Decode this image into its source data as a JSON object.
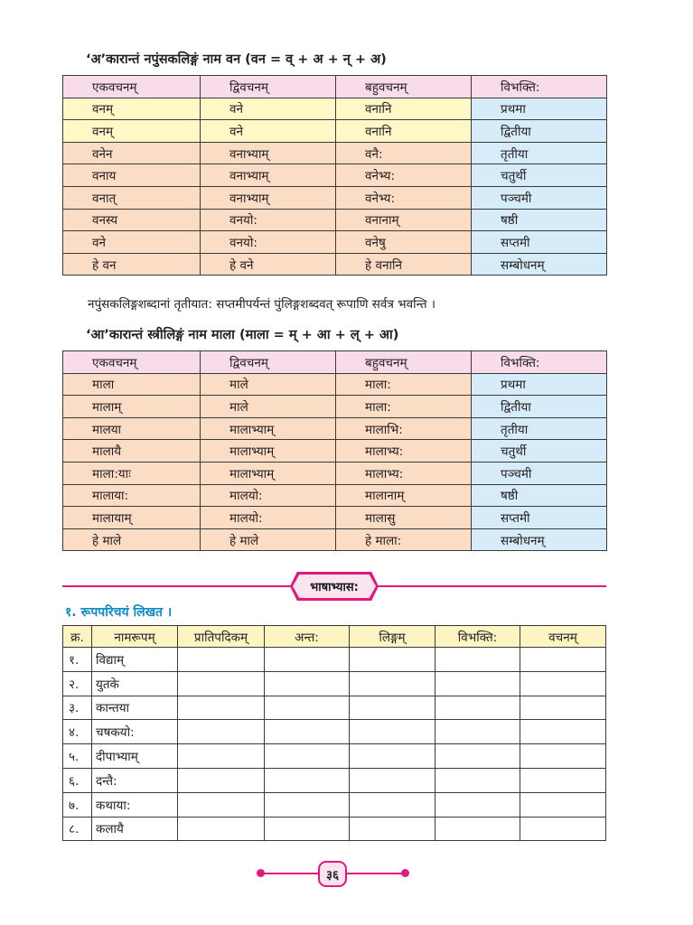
{
  "section1": {
    "heading": "‘अ’कारान्तं नपुंसकलिङ्गं नाम वन (वन = व् + अ + न् + अ)",
    "headers": [
      "एकवचनम्",
      "द्विवचनम्",
      "बहुवचनम्",
      "विभक्ति:"
    ],
    "rows": [
      [
        "वनम्",
        "वने",
        "वनानि",
        "प्रथमा"
      ],
      [
        "वनम्",
        "वने",
        "वनानि",
        "द्वितीया"
      ],
      [
        "वनेन",
        "वनाभ्याम्",
        "वनै:",
        "तृतीया"
      ],
      [
        "वनाय",
        "वनाभ्याम्",
        "वनेभ्य:",
        "चतुर्थी"
      ],
      [
        "वनात्",
        "वनाभ्याम्",
        "वनेभ्य:",
        "पञ्चमी"
      ],
      [
        "वनस्य",
        "वनयो:",
        "वनानाम्",
        "षष्ठी"
      ],
      [
        "वने",
        "वनयो:",
        "वनेषु",
        "सप्तमी"
      ],
      [
        "हे वन",
        "हे वने",
        "हे वनानि",
        "सम्बोधनम्"
      ]
    ]
  },
  "note": "नपुंसकलिङ्गशब्दानां तृतीयात: सप्तमीपर्यन्तं पुंलिङ्गशब्दवत् रूपाणि सर्वत्र भवन्ति ।",
  "section2": {
    "heading": "‘आ’कारान्तं स्त्रीलिङ्गं नाम माला (माला = म् + आ + ल् + आ)",
    "headers": [
      "एकवचनम्",
      "द्विवचनम्",
      "बहुवचनम्",
      "विभक्ति:"
    ],
    "rows": [
      [
        "माला",
        "माले",
        "माला:",
        "प्रथमा"
      ],
      [
        "मालाम्",
        "माले",
        "माला:",
        "द्वितीया"
      ],
      [
        "मालया",
        "मालाभ्याम्",
        "मालाभि:",
        "तृतीया"
      ],
      [
        "मालायै",
        "मालाभ्याम्",
        "मालाभ्य:",
        "चतुर्थी"
      ],
      [
        "माला:याः",
        "मालाभ्याम्",
        "मालाभ्य:",
        "पञ्चमी"
      ],
      [
        "मालाया:",
        "मालयो:",
        "मालानाम्",
        "षष्ठी"
      ],
      [
        "मालायाम्",
        "मालयो:",
        "मालासु",
        "सप्तमी"
      ],
      [
        "हे माले",
        "हे माले",
        "हे माला:",
        "सम्बोधनम्"
      ]
    ]
  },
  "badge": "भाषाभ्यास:",
  "exercise": {
    "title": "१. रूपपरिचयं लिखत ।",
    "headers": [
      "क्र.",
      "नामरूपम्",
      "प्रातिपदिकम्",
      "अन्त:",
      "लिङ्गम्",
      "विभक्ति:",
      "वचनम्"
    ],
    "rows": [
      [
        "१.",
        "विद्याम्"
      ],
      [
        "२.",
        "युतके"
      ],
      [
        "३.",
        "कान्तया"
      ],
      [
        "४.",
        "चषकयो:"
      ],
      [
        "५.",
        "दीपाभ्याम्"
      ],
      [
        "६.",
        "दन्तै:"
      ],
      [
        "७.",
        "कथाया:"
      ],
      [
        "८.",
        "कलायै"
      ]
    ]
  },
  "page_number": "३६",
  "colors": {
    "accent": "#e2187c",
    "header_pink": "#f9dce9",
    "cell_peach": "#fbdcc4",
    "cell_yellow": "#fdf8c6",
    "cell_blue": "#d6ecf8",
    "exercise_title": "#0e8bc9"
  }
}
